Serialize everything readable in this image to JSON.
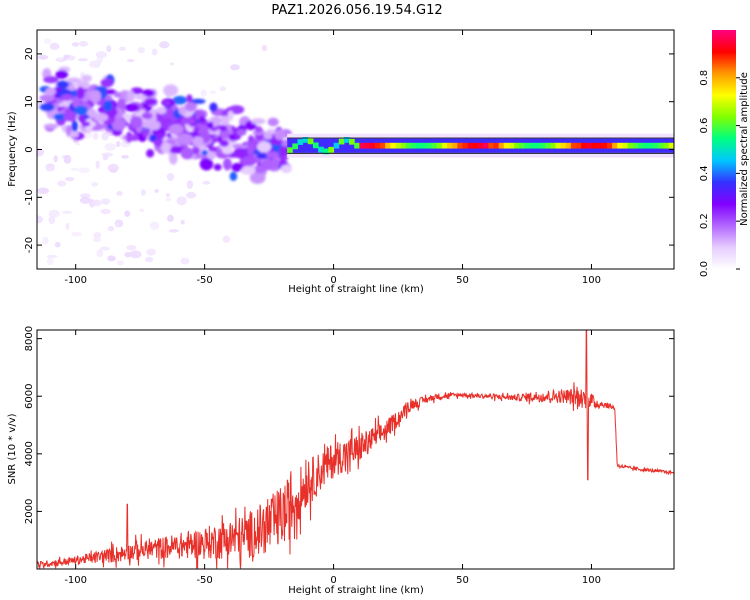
{
  "figure_title": "PAZ1.2026.056.19.54.G12",
  "chart_data": [
    {
      "type": "heatmap",
      "title": "PAZ1.2026.056.19.54.G12",
      "xlabel": "Height of straight line (km)",
      "ylabel": "Frequency (Hz)",
      "xlim": [
        -115,
        132
      ],
      "ylim": [
        -25,
        25
      ],
      "xticks": [
        -100,
        -50,
        0,
        50,
        100
      ],
      "yticks": [
        -20,
        -10,
        0,
        10,
        20
      ],
      "colorbar": {
        "label": "Normalized spectral amplitude",
        "range": [
          0,
          1
        ],
        "ticks": [
          "0.0",
          "0.2",
          "0.4",
          "0.6",
          "0.8"
        ],
        "colors": [
          "#ffffff",
          "#e6ccff",
          "#b266ff",
          "#8000ff",
          "#3333ff",
          "#00c8ff",
          "#00ff80",
          "#80ff00",
          "#ffff00",
          "#ff9900",
          "#ff0000",
          "#ff0080"
        ]
      },
      "features": [
        {
          "name": "scattered clusters",
          "x_range": [
            -112,
            -18
          ],
          "frequency_range": [
            -12,
            17
          ],
          "max_amplitude": 0.35
        },
        {
          "name": "weak outliers",
          "x_range": [
            -115,
            -15
          ],
          "frequency_range": [
            -24,
            23
          ],
          "max_amplitude": 0.05
        },
        {
          "name": "narrow band",
          "x_range": [
            -18,
            132
          ],
          "frequency_center": 0.8,
          "frequency_width": 3,
          "peak_amplitude": 1.0
        }
      ]
    },
    {
      "type": "line",
      "xlabel": "Height of straight line (km)",
      "ylabel": "SNR (10 * v/v)",
      "xlim": [
        -115,
        132
      ],
      "ylim": [
        0,
        8300
      ],
      "xticks": [
        -100,
        -50,
        0,
        50,
        100
      ],
      "yticks": [
        2000,
        4000,
        6000,
        8000
      ],
      "color": "#e8302a",
      "envelope": {
        "x": [
          -115,
          -100,
          -85,
          -70,
          -50,
          -35,
          -25,
          -18,
          -12,
          -5,
          0,
          10,
          20,
          30,
          40,
          50,
          60,
          70,
          80,
          90,
          96,
          100,
          105,
          109,
          110,
          115,
          120,
          125,
          132
        ],
        "mean": [
          150,
          300,
          500,
          700,
          900,
          1100,
          1500,
          2000,
          2800,
          3400,
          3800,
          4200,
          4800,
          5700,
          6000,
          6050,
          6000,
          5950,
          6000,
          6000,
          5950,
          5800,
          5700,
          5600,
          3600,
          3500,
          3450,
          3400,
          3350
        ],
        "noise": [
          150,
          200,
          400,
          500,
          800,
          1100,
          1400,
          1600,
          1200,
          1000,
          900,
          700,
          500,
          250,
          150,
          100,
          120,
          150,
          300,
          350,
          500,
          400,
          150,
          100,
          100,
          80,
          80,
          80,
          80
        ]
      },
      "spikes": [
        {
          "x": 98,
          "y": 8300
        },
        {
          "x": 98.5,
          "y": 3100
        },
        {
          "x": -80,
          "y": 2250
        }
      ]
    }
  ]
}
